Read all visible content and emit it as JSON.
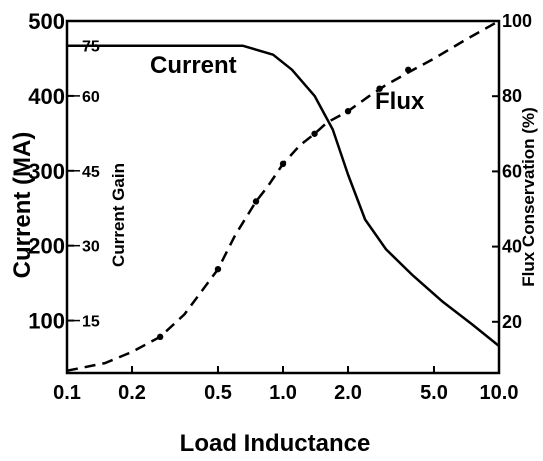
{
  "chart_data": {
    "type": "line",
    "xlabel": "Load Inductance",
    "ylabel": "Current (MA)",
    "ylabel_inner": "Current Gain",
    "ylabel_right": "Flux Conservation (%)",
    "x_scale": "log",
    "xlim": [
      0.1,
      10.0
    ],
    "ylim": [
      30,
      500
    ],
    "ylim_right": [
      6.38,
      100
    ],
    "x_ticks": [
      0.1,
      0.2,
      0.5,
      1.0,
      2.0,
      5.0,
      10.0
    ],
    "x_tick_labels": [
      "0.1",
      "0.2",
      "0.5",
      "1.0",
      "2.0",
      "5.0",
      "10.0"
    ],
    "y_ticks": [
      100,
      200,
      300,
      400,
      500
    ],
    "y_tick_labels": [
      "100",
      "200",
      "300",
      "400",
      "500"
    ],
    "gain_ticks": [
      100,
      200,
      300,
      400,
      467
    ],
    "gain_tick_labels": [
      "15",
      "30",
      "45",
      "60",
      "75"
    ],
    "y_right_ticks": [
      20,
      40,
      60,
      80,
      100
    ],
    "y_right_tick_labels": [
      "20",
      "40",
      "60",
      "80",
      "100"
    ],
    "grid": false,
    "series": [
      {
        "name": "Current",
        "axis": "left",
        "style": "solid",
        "points": [
          [
            0.1,
            467
          ],
          [
            0.3,
            467
          ],
          [
            0.65,
            467
          ],
          [
            0.9,
            455
          ],
          [
            1.1,
            435
          ],
          [
            1.4,
            400
          ],
          [
            1.7,
            355
          ],
          [
            2.0,
            295
          ],
          [
            2.4,
            235
          ],
          [
            3.0,
            195
          ],
          [
            4.0,
            160
          ],
          [
            5.5,
            125
          ],
          [
            7.5,
            95
          ],
          [
            10.0,
            66
          ]
        ]
      },
      {
        "name": "Flux",
        "axis": "right",
        "style": "dashed",
        "points": [
          [
            0.1,
            7
          ],
          [
            0.15,
            9
          ],
          [
            0.2,
            12
          ],
          [
            0.27,
            16
          ],
          [
            0.35,
            22
          ],
          [
            0.5,
            34
          ],
          [
            0.6,
            43
          ],
          [
            0.75,
            52
          ],
          [
            0.85,
            56
          ],
          [
            1.0,
            62
          ],
          [
            1.2,
            67
          ],
          [
            1.4,
            70
          ],
          [
            1.6,
            73
          ],
          [
            2.0,
            76
          ],
          [
            2.5,
            80
          ],
          [
            3.0,
            83
          ],
          [
            4.0,
            87
          ],
          [
            5.0,
            90
          ],
          [
            7.0,
            95
          ],
          [
            10.0,
            100
          ]
        ],
        "markers": [
          [
            0.27,
            16
          ],
          [
            0.5,
            34
          ],
          [
            0.75,
            52
          ],
          [
            1.0,
            62
          ],
          [
            1.4,
            70
          ],
          [
            2.0,
            76
          ],
          [
            2.8,
            82
          ],
          [
            3.8,
            87
          ]
        ]
      }
    ]
  }
}
